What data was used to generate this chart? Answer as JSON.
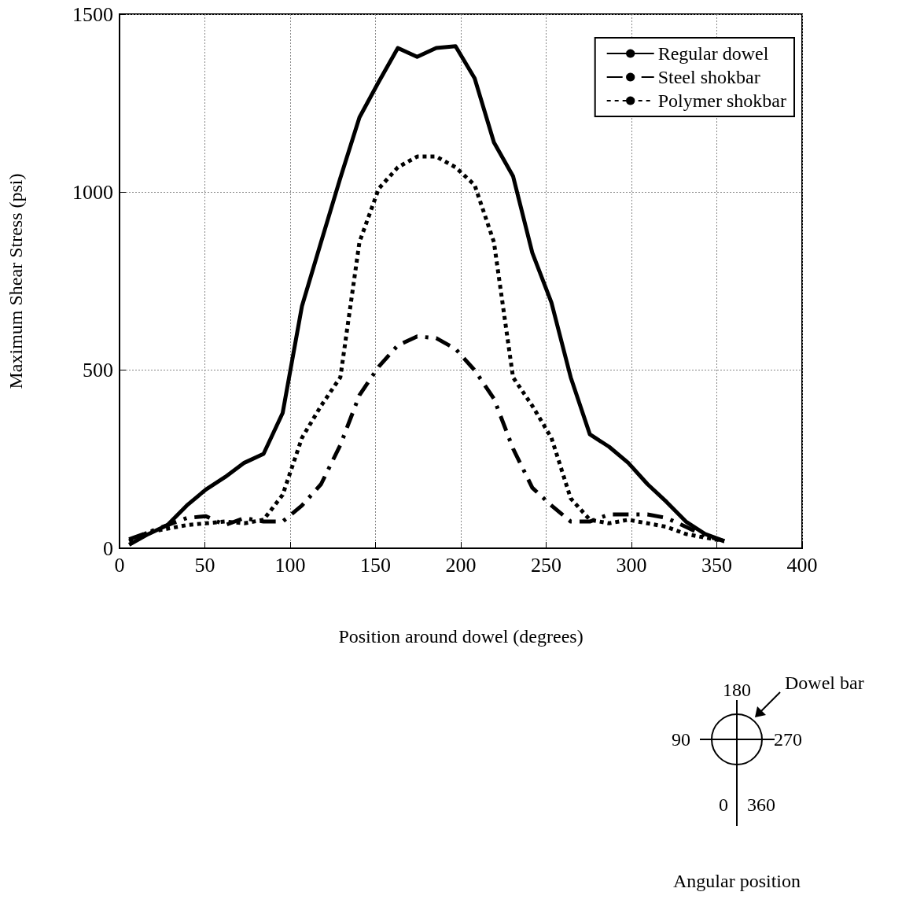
{
  "chart_data": {
    "type": "line",
    "xlabel": "Position around dowel (degrees)",
    "ylabel": "Maximum Shear Stress (psi)",
    "x": [
      5.6,
      16.9,
      28.1,
      39.4,
      50.6,
      61.9,
      73.1,
      84.4,
      95.6,
      106.9,
      118.1,
      129.4,
      140.6,
      151.9,
      163.1,
      174.4,
      185.6,
      196.9,
      208.1,
      219.4,
      230.6,
      241.9,
      253.1,
      264.4,
      275.6,
      286.9,
      298.1,
      309.4,
      320.6,
      331.9,
      343.1,
      354.4
    ],
    "series": [
      {
        "name": "Regular dowel",
        "color": "#000000",
        "line_style": "solid",
        "values": [
          10,
          40,
          65,
          120,
          165,
          200,
          240,
          265,
          380,
          680,
          860,
          1040,
          1210,
          1310,
          1405,
          1380,
          1405,
          1410,
          1320,
          1140,
          1045,
          830,
          690,
          480,
          320,
          285,
          240,
          180,
          130,
          75,
          40,
          20
        ]
      },
      {
        "name": "Steel shokbar",
        "color": "#000000",
        "line_style": "dashed",
        "values": [
          25,
          45,
          65,
          85,
          90,
          65,
          85,
          75,
          75,
          120,
          180,
          290,
          430,
          510,
          570,
          595,
          590,
          560,
          500,
          420,
          280,
          170,
          120,
          75,
          75,
          95,
          95,
          95,
          85,
          60,
          35,
          20
        ]
      },
      {
        "name": "Polymer shokbar",
        "color": "#000000",
        "line_style": "dotted",
        "values": [
          20,
          45,
          55,
          65,
          70,
          75,
          70,
          80,
          150,
          310,
          400,
          480,
          860,
          1010,
          1070,
          1100,
          1100,
          1070,
          1020,
          860,
          480,
          400,
          310,
          140,
          80,
          70,
          80,
          70,
          60,
          40,
          30,
          20
        ]
      }
    ],
    "xlim": [
      0,
      400
    ],
    "xticks": [
      0,
      50,
      100,
      150,
      200,
      250,
      300,
      350,
      400
    ],
    "ylim": [
      0,
      1500
    ],
    "yticks": [
      0,
      500,
      1000,
      1500
    ],
    "grid": true,
    "legend": "top right",
    "marker": "none",
    "annotations": [
      "180",
      "90",
      "270",
      "0",
      "360",
      "Dowel bar",
      "Angular position"
    ]
  }
}
